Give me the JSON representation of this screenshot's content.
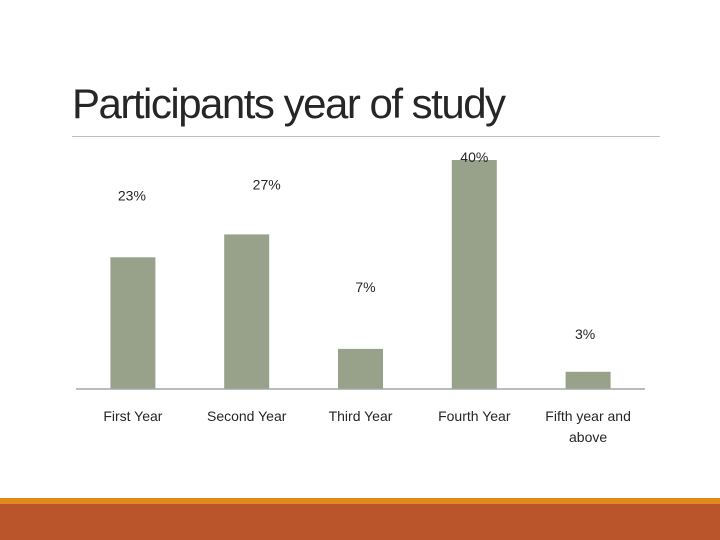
{
  "slide": {
    "title": "Participants year of study",
    "colors": {
      "bar": "#98a28a",
      "axis": "#a6a6a6",
      "footer_top": "#e08a1a",
      "footer_bottom": "#b9542b"
    }
  },
  "chart_data": {
    "type": "bar",
    "title": "",
    "xlabel": "",
    "ylabel": "",
    "categories": [
      "First Year",
      "Second Year",
      "Third Year",
      "Fourth Year",
      "Fifth year and above"
    ],
    "values": [
      23,
      27,
      7,
      40,
      3
    ],
    "value_labels": [
      "23%",
      "27%",
      "7%",
      "40%",
      "3%"
    ],
    "unit": "%",
    "ylim": [
      0,
      40
    ],
    "grid": false,
    "legend": "none"
  }
}
